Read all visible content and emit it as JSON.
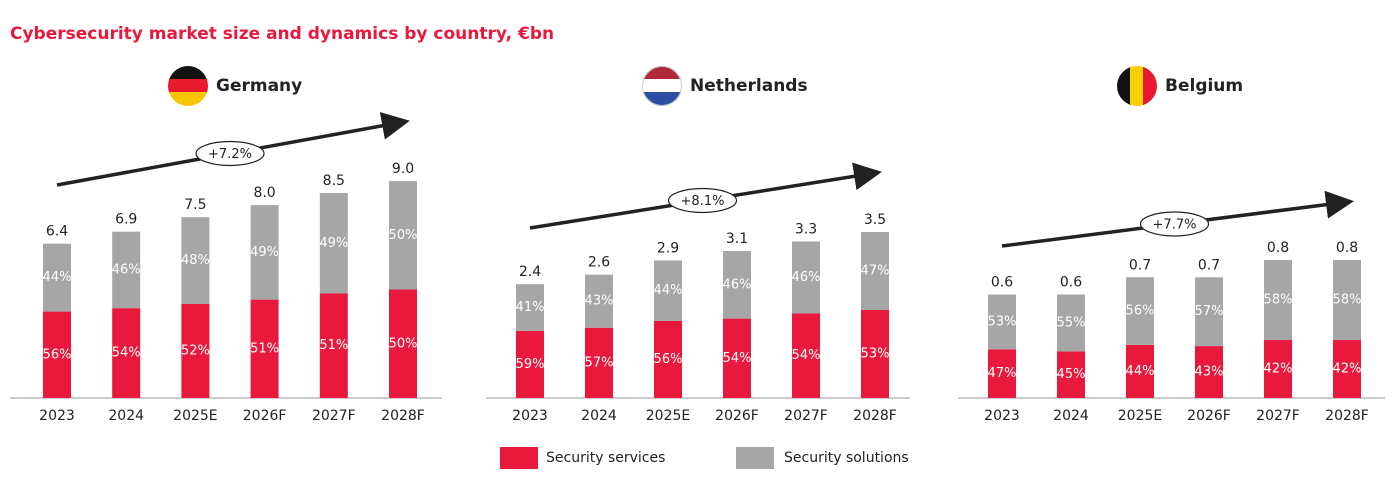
{
  "title": "Cybersecurity market size and dynamics by country, €bn",
  "chart_data": [
    {
      "type": "bar",
      "title": "Germany",
      "annotation": "+7.2%",
      "categories": [
        "2023",
        "2024",
        "2025E",
        "2026F",
        "2027F",
        "2028F"
      ],
      "values": [
        6.4,
        6.9,
        7.5,
        8.0,
        8.5,
        9.0
      ],
      "value_labels": [
        "6.4",
        "6.9",
        "7.5",
        "8.0",
        "8.5",
        "9.0"
      ],
      "series": [
        {
          "color": "#e8193c",
          "values": [
            56,
            54,
            52,
            51,
            51,
            50
          ],
          "value_labels": [
            "56%",
            "54%",
            "52%",
            "51%",
            "51%",
            "50%"
          ]
        },
        {
          "color": "#a6a6a6",
          "values": [
            44,
            46,
            48,
            49,
            49,
            50
          ],
          "value_labels": [
            "44%",
            "46%",
            "48%",
            "49%",
            "49%",
            "50%"
          ]
        }
      ]
    },
    {
      "type": "bar",
      "title": "Netherlands",
      "annotation": "+8.1%",
      "categories": [
        "2023",
        "2024",
        "2025E",
        "2026F",
        "2027F",
        "2028F"
      ],
      "values": [
        2.4,
        2.6,
        2.9,
        3.1,
        3.3,
        3.5
      ],
      "value_labels": [
        "2.4",
        "2.6",
        "2.9",
        "3.1",
        "3.3",
        "3.5"
      ],
      "series": [
        {
          "name": "Security services",
          "color": "#e8193c",
          "values": [
            59,
            57,
            56,
            54,
            54,
            53
          ],
          "value_labels": [
            "59%",
            "57%",
            "56%",
            "54%",
            "54%",
            "53%"
          ]
        },
        {
          "name": "Security solutions",
          "color": "#a6a6a6",
          "values": [
            41,
            43,
            44,
            46,
            46,
            47
          ],
          "value_labels": [
            "41%",
            "43%",
            "44%",
            "46%",
            "46%",
            "47%"
          ]
        }
      ]
    },
    {
      "type": "bar",
      "title": "Belgium",
      "annotation": "+7.7%",
      "categories": [
        "2023",
        "2024",
        "2025E",
        "2026F",
        "2027F",
        "2028F"
      ],
      "values": [
        0.6,
        0.6,
        0.7,
        0.7,
        0.8,
        0.8
      ],
      "value_labels": [
        "0.6",
        "0.6",
        "0.7",
        "0.7",
        "0.8",
        "0.8"
      ],
      "series": [
        {
          "color": "#e8193c",
          "values": [
            47,
            45,
            44,
            43,
            42,
            42
          ],
          "value_labels": [
            "47%",
            "45%",
            "44%",
            "43%",
            "42%",
            "42%"
          ]
        },
        {
          "color": "#a6a6a6",
          "values": [
            53,
            55,
            56,
            57,
            58,
            58
          ],
          "value_labels": [
            "53%",
            "55%",
            "56%",
            "57%",
            "58%",
            "58%"
          ]
        }
      ]
    }
  ]
}
